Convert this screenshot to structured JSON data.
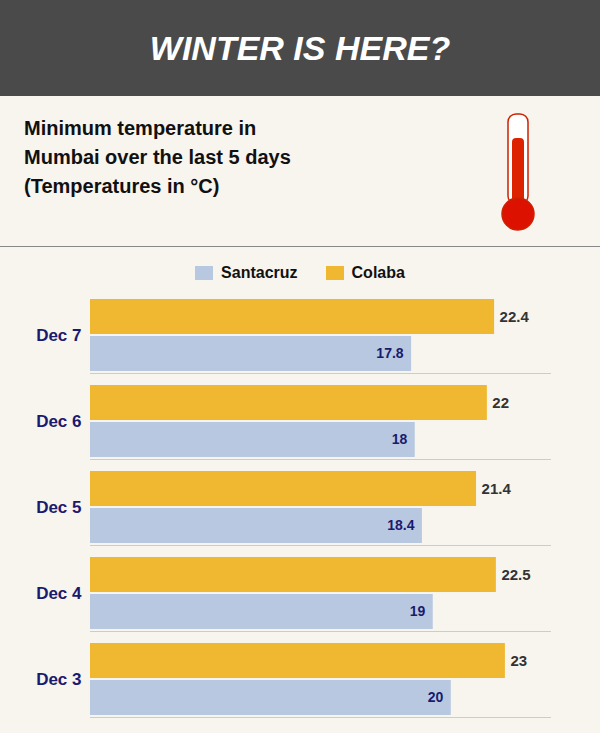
{
  "chart_data": {
    "type": "bar",
    "orientation": "horizontal",
    "title": "WINTER IS HERE?",
    "subtitle": "Minimum temperature in\nMumbai over the last 5 days\n(Temperatures in °C)",
    "categories": [
      "Dec 7",
      "Dec 6",
      "Dec 5",
      "Dec 4",
      "Dec 3"
    ],
    "series": [
      {
        "name": "Santacruz",
        "color": "#b8c8e0",
        "values": [
          17.8,
          18.0,
          18.4,
          19.0,
          20.0
        ]
      },
      {
        "name": "Colaba",
        "color": "#f0b830",
        "values": [
          22.4,
          22.0,
          21.4,
          22.5,
          23.0
        ]
      }
    ],
    "xlim": [
      0,
      25.5
    ],
    "tick_labels": "y",
    "data_labels": true,
    "legend": "top",
    "grid": false
  }
}
